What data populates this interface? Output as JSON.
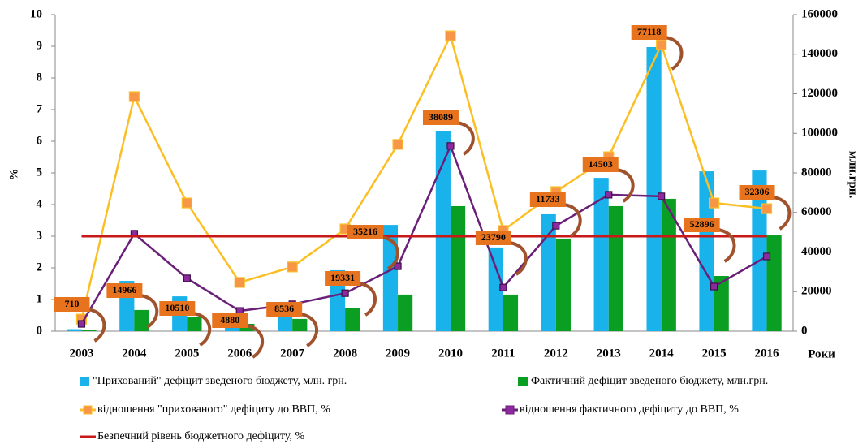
{
  "chart_data": {
    "type": "bar",
    "categories": [
      "2003",
      "2004",
      "2005",
      "2006",
      "2007",
      "2008",
      "2009",
      "2010",
      "2011",
      "2012",
      "2013",
      "2014",
      "2015",
      "2016"
    ],
    "x_label": "Роки",
    "y_label": "%",
    "y2_label": "млн.грн.",
    "ylim": [
      0,
      10
    ],
    "yticks": [
      0,
      1,
      2,
      3,
      4,
      5,
      6,
      7,
      8,
      9,
      10
    ],
    "y2lim": [
      0,
      160000
    ],
    "y2ticks": [
      0,
      20000,
      40000,
      60000,
      80000,
      100000,
      120000,
      140000,
      160000
    ],
    "series": [
      {
        "name": "\"Прихований\" дефіцит зведеного бюджету, млн. грн.",
        "type": "bar",
        "axis": "y2",
        "color": "#1ab2ea",
        "values": [
          1000,
          25400,
          17600,
          8600,
          14800,
          30800,
          53700,
          101300,
          42300,
          59100,
          77500,
          143600,
          80800,
          81200
        ]
      },
      {
        "name": "Фактичний дефіцит зведеного бюджету, млн.грн.",
        "type": "bar",
        "axis": "y2",
        "color": "#0a9e22",
        "values": [
          400,
          10700,
          7400,
          3700,
          6200,
          11500,
          18500,
          63200,
          18500,
          46800,
          63200,
          66900,
          27900,
          48400
        ]
      },
      {
        "name": "відношення \"прихованого\" дефіциту до ВВП, %",
        "type": "line",
        "marker": "square",
        "color": "#fbbf24",
        "values": [
          0.38,
          7.41,
          4.05,
          1.54,
          2.03,
          3.23,
          5.9,
          9.33,
          3.18,
          4.41,
          5.51,
          9.05,
          4.05,
          3.87
        ]
      },
      {
        "name": "відношення фактичного дефіциту до ВВП, %",
        "type": "line",
        "marker": "square",
        "color": "#6a1f78",
        "values": [
          0.23,
          3.08,
          1.67,
          0.64,
          0.85,
          1.2,
          2.05,
          5.85,
          1.38,
          3.33,
          4.31,
          4.26,
          1.41,
          2.36
        ]
      },
      {
        "name": "Безпечний рівень бюджетного дефіциту, %",
        "type": "line",
        "marker": "none",
        "color": "#c81818",
        "values": [
          3,
          3,
          3,
          3,
          3,
          3,
          3,
          3,
          3,
          3,
          3,
          3,
          3,
          3
        ]
      }
    ],
    "callouts": [
      710,
      14966,
      10510,
      4880,
      8536,
      19331,
      35216,
      38089,
      23790,
      11733,
      14503,
      77118,
      52896,
      32306
    ]
  }
}
